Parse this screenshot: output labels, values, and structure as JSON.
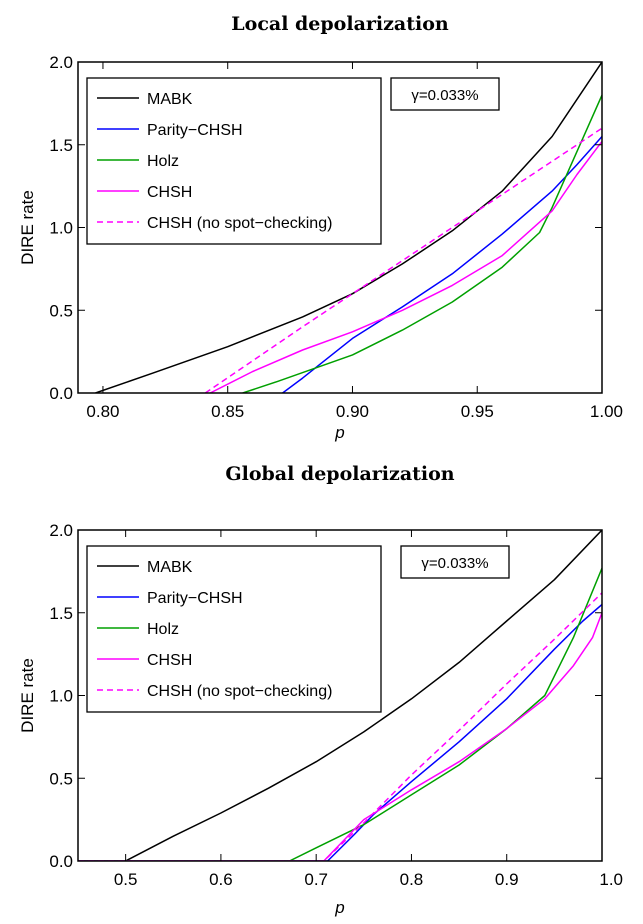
{
  "chart_data": [
    {
      "type": "line",
      "title": "Local depolarization",
      "xlabel": "p",
      "ylabel": "DIRE rate",
      "xlim": [
        0.79,
        1.0
      ],
      "ylim": [
        0.0,
        2.0
      ],
      "xticks": [
        "0.80",
        "0.85",
        "0.90",
        "0.95",
        "1.00"
      ],
      "yticks": [
        "0.0",
        "0.5",
        "1.0",
        "1.5",
        "2.0"
      ],
      "grid": false,
      "legend_position": "top-left",
      "annotation": "γ=0.033%",
      "series": [
        {
          "name": "MABK",
          "color": "#000000",
          "dashed": false,
          "x": [
            0.797,
            0.82,
            0.85,
            0.88,
            0.9,
            0.92,
            0.94,
            0.96,
            0.98,
            1.0
          ],
          "y": [
            0.0,
            0.12,
            0.28,
            0.46,
            0.6,
            0.78,
            0.98,
            1.22,
            1.55,
            2.0
          ]
        },
        {
          "name": "Parity−CHSH",
          "color": "#0000ff",
          "dashed": false,
          "x": [
            0.872,
            0.88,
            0.9,
            0.92,
            0.94,
            0.96,
            0.98,
            0.99,
            1.0
          ],
          "y": [
            0.0,
            0.09,
            0.33,
            0.52,
            0.72,
            0.96,
            1.22,
            1.38,
            1.55
          ]
        },
        {
          "name": "Holz",
          "color": "#00a000",
          "dashed": false,
          "x": [
            0.856,
            0.87,
            0.9,
            0.92,
            0.94,
            0.96,
            0.975,
            0.98,
            1.0
          ],
          "y": [
            0.0,
            0.07,
            0.23,
            0.38,
            0.55,
            0.76,
            0.97,
            1.12,
            1.8
          ]
        },
        {
          "name": "CHSH",
          "color": "#ff00ff",
          "dashed": false,
          "x": [
            0.843,
            0.86,
            0.88,
            0.9,
            0.92,
            0.94,
            0.96,
            0.98,
            0.99,
            1.0
          ],
          "y": [
            0.0,
            0.13,
            0.26,
            0.37,
            0.5,
            0.65,
            0.83,
            1.1,
            1.32,
            1.52
          ]
        },
        {
          "name": "CHSH (no spot−checking)",
          "color": "#ff00ff",
          "dashed": true,
          "x": [
            0.841,
            0.88,
            0.92,
            0.96,
            1.0
          ],
          "y": [
            0.0,
            0.4,
            0.8,
            1.2,
            1.6
          ]
        }
      ]
    },
    {
      "type": "line",
      "title": "Global depolarization",
      "xlabel": "p",
      "ylabel": "DIRE rate",
      "xlim": [
        0.45,
        1.0
      ],
      "ylim": [
        0.0,
        2.0
      ],
      "xticks": [
        "0.5",
        "0.6",
        "0.7",
        "0.8",
        "0.9",
        "1.0"
      ],
      "yticks": [
        "0.0",
        "0.5",
        "1.0",
        "1.5",
        "2.0"
      ],
      "grid": false,
      "legend_position": "top-left",
      "annotation": "γ=0.033%",
      "series": [
        {
          "name": "MABK",
          "color": "#000000",
          "dashed": false,
          "x": [
            0.45,
            0.5,
            0.55,
            0.6,
            0.65,
            0.7,
            0.75,
            0.8,
            0.85,
            0.9,
            0.95,
            1.0
          ],
          "y": [
            0.0,
            0.0,
            0.15,
            0.29,
            0.44,
            0.6,
            0.78,
            0.98,
            1.2,
            1.45,
            1.7,
            2.0
          ]
        },
        {
          "name": "Parity−CHSH",
          "color": "#0000ff",
          "dashed": false,
          "x": [
            0.45,
            0.712,
            0.74,
            0.76,
            0.8,
            0.85,
            0.9,
            0.95,
            0.98,
            1.0
          ],
          "y": [
            0.0,
            0.0,
            0.16,
            0.28,
            0.48,
            0.72,
            0.98,
            1.28,
            1.45,
            1.55
          ]
        },
        {
          "name": "Holz",
          "color": "#00a000",
          "dashed": false,
          "x": [
            0.45,
            0.672,
            0.7,
            0.75,
            0.8,
            0.85,
            0.9,
            0.94,
            0.97,
            1.0
          ],
          "y": [
            0.0,
            0.0,
            0.08,
            0.22,
            0.4,
            0.58,
            0.8,
            1.0,
            1.35,
            1.77
          ]
        },
        {
          "name": "CHSH",
          "color": "#ff00ff",
          "dashed": false,
          "x": [
            0.45,
            0.708,
            0.75,
            0.8,
            0.85,
            0.9,
            0.94,
            0.97,
            0.99,
            1.0
          ],
          "y": [
            0.0,
            0.0,
            0.25,
            0.43,
            0.6,
            0.8,
            0.98,
            1.18,
            1.35,
            1.5
          ]
        },
        {
          "name": "CHSH (no spot−checking)",
          "color": "#ff00ff",
          "dashed": true,
          "x": [
            0.45,
            0.708,
            0.75,
            0.8,
            0.85,
            0.9,
            0.95,
            1.0
          ],
          "y": [
            0.0,
            0.0,
            0.23,
            0.52,
            0.79,
            1.07,
            1.34,
            1.62
          ]
        }
      ]
    }
  ]
}
